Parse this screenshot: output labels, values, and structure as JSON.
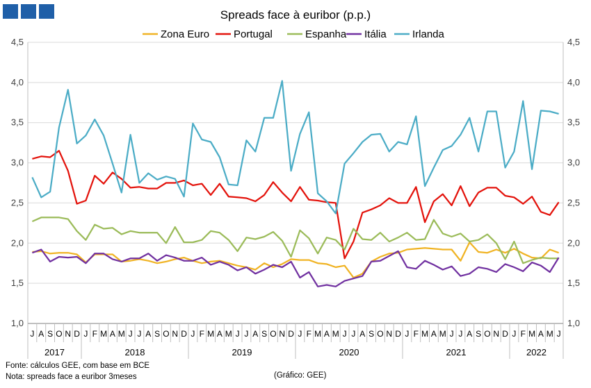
{
  "chart_data": {
    "type": "line",
    "title": "Spreads face à euribor (p.p.)",
    "y_ticks": [
      "1,0",
      "1,5",
      "2,0",
      "2,5",
      "3,0",
      "3,5",
      "4,0",
      "4,5"
    ],
    "ylim": [
      1.0,
      4.5
    ],
    "grid": true,
    "legend": "top",
    "month_labels": [
      "J",
      "A",
      "S",
      "O",
      "N",
      "D",
      "J",
      "F",
      "M",
      "A",
      "M",
      "J",
      "J",
      "A",
      "S",
      "O",
      "N",
      "D",
      "J",
      "F",
      "M",
      "A",
      "M",
      "J",
      "J",
      "A",
      "S",
      "O",
      "N",
      "D",
      "J",
      "F",
      "M",
      "A",
      "M",
      "J",
      "J",
      "A",
      "S",
      "O",
      "N",
      "D",
      "J",
      "F",
      "M",
      "A",
      "M",
      "J",
      "J",
      "A",
      "S",
      "O",
      "N",
      "D",
      "J",
      "F",
      "M",
      "A",
      "M",
      "J"
    ],
    "years": [
      {
        "label": "2017",
        "start": 0,
        "end": 5
      },
      {
        "label": "2018",
        "start": 6,
        "end": 17
      },
      {
        "label": "2019",
        "start": 18,
        "end": 29
      },
      {
        "label": "2020",
        "start": 30,
        "end": 41
      },
      {
        "label": "2021",
        "start": 42,
        "end": 53
      },
      {
        "label": "2022",
        "start": 54,
        "end": 59
      }
    ],
    "series": [
      {
        "name": "Zona Euro",
        "color": "#f0b323",
        "values": [
          1.89,
          1.9,
          1.87,
          1.88,
          1.88,
          1.86,
          1.76,
          1.86,
          1.86,
          1.86,
          1.77,
          1.78,
          1.8,
          1.78,
          1.75,
          1.77,
          1.8,
          1.82,
          1.78,
          1.75,
          1.77,
          1.78,
          1.75,
          1.72,
          1.7,
          1.67,
          1.75,
          1.7,
          1.74,
          1.8,
          1.79,
          1.79,
          1.75,
          1.74,
          1.7,
          1.72,
          1.57,
          1.62,
          1.77,
          1.83,
          1.87,
          1.88,
          1.92,
          1.93,
          1.94,
          1.93,
          1.92,
          1.92,
          1.78,
          2.01,
          1.89,
          1.88,
          1.92,
          1.88,
          1.93,
          1.87,
          1.82,
          1.81,
          1.92,
          1.88
        ]
      },
      {
        "name": "Portugal",
        "color": "#e3120b",
        "values": [
          3.05,
          3.08,
          3.07,
          3.15,
          2.9,
          2.49,
          2.53,
          2.84,
          2.74,
          2.88,
          2.8,
          2.69,
          2.7,
          2.68,
          2.68,
          2.75,
          2.75,
          2.78,
          2.72,
          2.74,
          2.6,
          2.74,
          2.58,
          2.57,
          2.56,
          2.52,
          2.6,
          2.76,
          2.63,
          2.52,
          2.7,
          2.54,
          2.53,
          2.51,
          2.5,
          1.81,
          2.02,
          2.38,
          2.42,
          2.47,
          2.56,
          2.5,
          2.5,
          2.7,
          2.26,
          2.52,
          2.61,
          2.47,
          2.71,
          2.46,
          2.63,
          2.69,
          2.69,
          2.59,
          2.57,
          2.49,
          2.58,
          2.39,
          2.35,
          2.51
        ]
      },
      {
        "name": "Espanha",
        "color": "#9bbb59",
        "values": [
          2.27,
          2.32,
          2.32,
          2.32,
          2.3,
          2.15,
          2.04,
          2.23,
          2.18,
          2.19,
          2.11,
          2.15,
          2.13,
          2.13,
          2.13,
          2.0,
          2.2,
          2.01,
          2.01,
          2.04,
          2.15,
          2.13,
          2.04,
          1.9,
          2.07,
          2.05,
          2.08,
          2.14,
          2.03,
          1.83,
          2.16,
          2.06,
          1.87,
          2.07,
          2.04,
          1.92,
          2.18,
          2.05,
          2.04,
          2.13,
          2.02,
          2.07,
          2.13,
          2.04,
          2.05,
          2.29,
          2.12,
          2.08,
          2.12,
          2.02,
          2.04,
          2.11,
          2.0,
          1.8,
          2.02,
          1.75,
          1.79,
          1.82,
          1.81,
          1.81
        ]
      },
      {
        "name": "Itália",
        "color": "#7030a0",
        "values": [
          1.88,
          1.92,
          1.77,
          1.83,
          1.82,
          1.83,
          1.75,
          1.87,
          1.87,
          1.8,
          1.77,
          1.81,
          1.81,
          1.87,
          1.78,
          1.85,
          1.82,
          1.78,
          1.78,
          1.82,
          1.73,
          1.77,
          1.73,
          1.66,
          1.7,
          1.62,
          1.67,
          1.73,
          1.7,
          1.77,
          1.57,
          1.64,
          1.46,
          1.48,
          1.46,
          1.53,
          1.56,
          1.59,
          1.77,
          1.78,
          1.84,
          1.9,
          1.7,
          1.68,
          1.78,
          1.73,
          1.67,
          1.71,
          1.59,
          1.62,
          1.7,
          1.68,
          1.64,
          1.74,
          1.7,
          1.65,
          1.76,
          1.72,
          1.64,
          1.82
        ]
      },
      {
        "name": "Irlanda",
        "color": "#4bacc6",
        "values": [
          2.82,
          2.57,
          2.64,
          3.44,
          3.91,
          3.24,
          3.34,
          3.54,
          3.34,
          2.99,
          2.63,
          3.35,
          2.75,
          2.87,
          2.79,
          2.83,
          2.8,
          2.58,
          3.49,
          3.29,
          3.26,
          3.07,
          2.73,
          2.72,
          3.28,
          3.14,
          3.56,
          3.56,
          4.02,
          2.9,
          3.36,
          3.63,
          2.62,
          2.52,
          2.37,
          2.99,
          3.12,
          3.26,
          3.35,
          3.36,
          3.14,
          3.26,
          3.23,
          3.58,
          2.71,
          2.94,
          3.16,
          3.21,
          3.35,
          3.56,
          3.14,
          3.64,
          3.64,
          2.94,
          3.14,
          3.77,
          2.92,
          3.65,
          3.64,
          3.61
        ]
      }
    ]
  },
  "footnotes": {
    "source": "Fonte: cálculos GEE, com base em BCE",
    "note": "Nota: spreads face a euribor 3meses",
    "credit": "(Gráfico: GEE)"
  }
}
